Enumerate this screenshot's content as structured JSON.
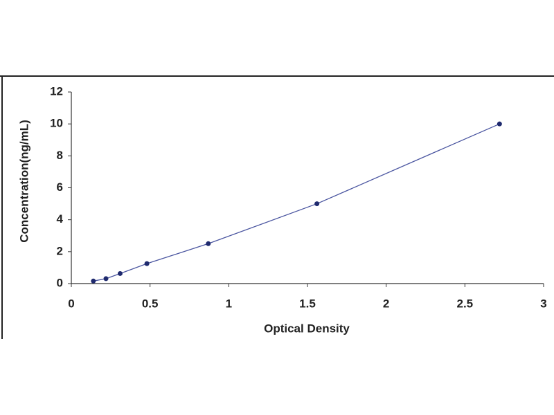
{
  "chart_data": {
    "type": "scatter",
    "x_label": "Optical Density",
    "y_label": "Concentration(ng/mL)",
    "x": [
      0.14,
      0.22,
      0.31,
      0.48,
      0.87,
      1.56,
      2.72
    ],
    "values": [
      0.16,
      0.31,
      0.63,
      1.25,
      2.5,
      5,
      10
    ],
    "color": "#1f2a6e",
    "line_color": "#4a55a0",
    "connect": true,
    "xlim": [
      0,
      3
    ],
    "xticks": [
      0,
      0.5,
      1,
      1.5,
      2,
      2.5,
      3
    ],
    "ylim": [
      0,
      12
    ],
    "yticks": [
      0,
      2,
      4,
      6,
      8,
      10,
      12
    ]
  }
}
